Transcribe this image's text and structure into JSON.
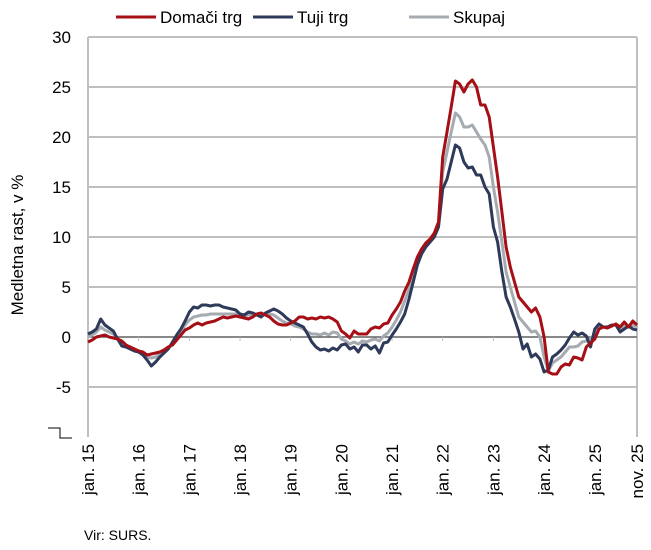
{
  "chart_data": {
    "type": "line",
    "title": "",
    "ylabel": "Medletna rast, v %",
    "xlabel": "",
    "ylim": [
      -10,
      30
    ],
    "yticks": [
      -5,
      0,
      5,
      10,
      15,
      20,
      25,
      30
    ],
    "grid": true,
    "legend_placement": "top",
    "x_start": "jan. 15",
    "x_end": "nov. 25",
    "frequency": "monthly",
    "xtick_labels": [
      "jan. 15",
      "jan. 16",
      "jan. 17",
      "jan. 18",
      "jan. 19",
      "jan. 20",
      "jan. 21",
      "jan. 22",
      "jan. 23",
      "jan. 24",
      "jan. 25",
      "nov. 25"
    ],
    "xtick_index": [
      0,
      12,
      24,
      36,
      48,
      60,
      72,
      84,
      96,
      108,
      120,
      130
    ],
    "series": [
      {
        "name": "Domači trg",
        "color": "#A50F15",
        "values": [
          -0.5,
          -0.3,
          0,
          0.1,
          0.2,
          0,
          -0.1,
          -0.2,
          -0.4,
          -0.8,
          -1.0,
          -1.2,
          -1.4,
          -1.5,
          -1.8,
          -1.7,
          -1.6,
          -1.5,
          -1.3,
          -1.0,
          -0.8,
          -0.3,
          0.2,
          0.7,
          0.9,
          1.2,
          1.4,
          1.2,
          1.4,
          1.5,
          1.6,
          1.8,
          2.0,
          1.9,
          2.0,
          2.1,
          2.0,
          1.9,
          1.8,
          2.0,
          2.3,
          2.4,
          2.2,
          2.0,
          1.6,
          1.3,
          1.2,
          1.2,
          1.4,
          1.6,
          2.0,
          2.0,
          1.8,
          1.9,
          1.8,
          2.0,
          1.9,
          2.0,
          1.8,
          1.5,
          0.6,
          0.3,
          -0.1,
          0.6,
          0.3,
          0.3,
          0.3,
          0.8,
          1.0,
          0.9,
          1.3,
          1.4,
          2.2,
          2.8,
          3.5,
          4.6,
          5.5,
          6.8,
          8.0,
          8.8,
          9.4,
          9.8,
          10.4,
          11.5,
          18,
          20.5,
          23,
          25.6,
          25.3,
          24.5,
          25.3,
          25.7,
          25,
          23.2,
          23.2,
          22,
          19,
          16,
          12.5,
          9,
          7,
          5.5,
          4,
          3.5,
          3,
          2.5,
          2.9,
          2,
          0,
          -3.5,
          -3.7,
          -3.7,
          -3,
          -2.7,
          -2.8,
          -2.0,
          -2.1,
          -2.3,
          -1.0,
          -0.6,
          -0.2,
          0.8,
          1.0,
          0.9,
          1.1,
          1.3,
          1.0,
          1.5,
          1.0,
          1.6,
          1.2
        ]
      },
      {
        "name": "Tuji trg",
        "color": "#2E3A59",
        "values": [
          0.3,
          0.5,
          0.8,
          1.8,
          1.2,
          0.9,
          0.6,
          -0.2,
          -0.9,
          -1.0,
          -1.2,
          -1.4,
          -1.5,
          -1.8,
          -2.3,
          -2.9,
          -2.5,
          -2.0,
          -1.6,
          -1.2,
          -0.5,
          0.2,
          0.8,
          1.6,
          2.5,
          3.0,
          2.9,
          3.2,
          3.2,
          3.1,
          3.2,
          3.2,
          3.0,
          2.9,
          2.8,
          2.7,
          2.3,
          2.2,
          2.5,
          2.4,
          2.2,
          2.0,
          2.4,
          2.6,
          2.8,
          2.6,
          2.3,
          1.9,
          1.6,
          1.4,
          1.2,
          1.0,
          0.3,
          -0.5,
          -1.0,
          -1.3,
          -1.2,
          -1.4,
          -1.1,
          -1.3,
          -0.8,
          -0.7,
          -1.2,
          -1.0,
          -1.5,
          -0.8,
          -0.8,
          -1.2,
          -0.9,
          -1.6,
          -0.6,
          -0.5,
          0.2,
          0.8,
          1.5,
          2.3,
          3.8,
          5.5,
          7.2,
          8.3,
          9.0,
          9.5,
          10.0,
          11.0,
          14.8,
          15.8,
          17.5,
          19.2,
          18.9,
          17.5,
          16.9,
          17.0,
          16.2,
          16.2,
          15.0,
          14.3,
          11,
          9.5,
          6.5,
          4,
          3,
          1.8,
          0.5,
          -1.2,
          -0.7,
          -2.0,
          -1.7,
          -2.2,
          -3.5,
          -3.3,
          -2.0,
          -1.7,
          -1.3,
          -0.8,
          -0.1,
          0.5,
          0.2,
          0.4,
          0.1,
          -1.0,
          0.8,
          1.3,
          1.0,
          1.0,
          1.2,
          1.2,
          0.5,
          0.8,
          1.1,
          0.8,
          0.7
        ]
      },
      {
        "name": "Skupaj",
        "color": "#A6ABB1",
        "values": [
          0,
          0.2,
          0.5,
          1.0,
          0.7,
          0.5,
          0.3,
          -0.2,
          -0.7,
          -0.9,
          -1.1,
          -1.3,
          -1.4,
          -1.6,
          -2.0,
          -2.1,
          -2.0,
          -1.7,
          -1.4,
          -1.1,
          -0.7,
          -0.1,
          0.5,
          1.2,
          1.7,
          2.0,
          2.1,
          2.2,
          2.2,
          2.3,
          2.3,
          2.3,
          2.3,
          2.3,
          2.3,
          2.3,
          2.2,
          2.1,
          2.2,
          2.2,
          2.3,
          2.3,
          2.3,
          2.3,
          2.2,
          1.9,
          1.6,
          1.4,
          1.3,
          1.1,
          1.0,
          0.8,
          0.5,
          0.3,
          0.3,
          0.2,
          0.4,
          0.2,
          0.5,
          0.4,
          -0.2,
          -0.4,
          -0.7,
          -0.5,
          -0.7,
          -0.4,
          -0.5,
          -0.3,
          -0.2,
          -0.4,
          0.1,
          0.4,
          1.0,
          1.7,
          2.5,
          3.6,
          4.8,
          6.2,
          7.6,
          8.5,
          9.2,
          9.7,
          10.3,
          11.2,
          16.5,
          18.5,
          20.5,
          22.4,
          22,
          21,
          21,
          21.2,
          20.5,
          19.8,
          19.2,
          18,
          15,
          12.5,
          9.5,
          6.5,
          5,
          3.5,
          2,
          1.5,
          1,
          0.5,
          0.6,
          0,
          -2,
          -3.4,
          -2.6,
          -2.3,
          -2.0,
          -1.5,
          -1.0,
          -1.0,
          -0.9,
          -0.5,
          -0.4,
          -0.2,
          0.3,
          1.0,
          1.0,
          1.0,
          1.1,
          1.3,
          0.8,
          1.2,
          1.0,
          1.2,
          1.0
        ]
      }
    ],
    "source": "Vir: SURS."
  }
}
